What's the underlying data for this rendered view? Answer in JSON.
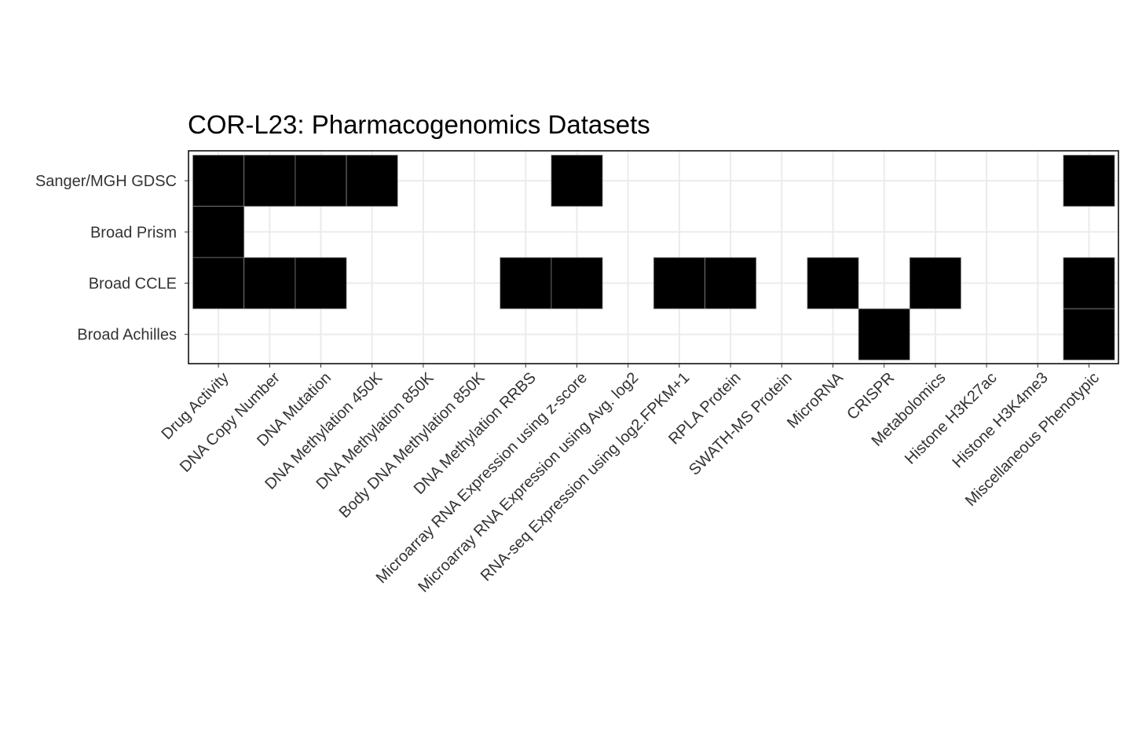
{
  "chart_data": {
    "type": "heatmap",
    "title": "COR-L23: Pharmacogenomics Datasets",
    "xlabel": "",
    "ylabel": "",
    "categories_x": [
      "Drug Activity",
      "DNA Copy Number",
      "DNA Mutation",
      "DNA Methylation 450K",
      "DNA Methylation 850K",
      "Body DNA Methylation 850K",
      "DNA Methylation RRBS",
      "Microarray RNA Expression using z-score",
      "Microarray RNA Expression using Avg. log2",
      "RNA-seq Expression using log2.FPKM+1",
      "RPLA Protein",
      "SWATH-MS Protein",
      "MicroRNA",
      "CRISPR",
      "Metabolomics",
      "Histone H3K27ac",
      "Histone H3K4me3",
      "Miscellaneous Phenotypic"
    ],
    "categories_y": [
      "Sanger/MGH GDSC",
      "Broad Prism",
      "Broad CCLE",
      "Broad Achilles"
    ],
    "values": [
      [
        1,
        1,
        1,
        1,
        0,
        0,
        0,
        1,
        0,
        0,
        0,
        0,
        0,
        0,
        0,
        0,
        0,
        1
      ],
      [
        1,
        0,
        0,
        0,
        0,
        0,
        0,
        0,
        0,
        0,
        0,
        0,
        0,
        0,
        0,
        0,
        0,
        0
      ],
      [
        1,
        1,
        1,
        0,
        0,
        0,
        1,
        1,
        0,
        1,
        1,
        0,
        1,
        0,
        1,
        0,
        0,
        1
      ],
      [
        0,
        0,
        0,
        0,
        0,
        0,
        0,
        0,
        0,
        0,
        0,
        0,
        0,
        1,
        0,
        0,
        0,
        1
      ]
    ],
    "grid": true,
    "legend": "none",
    "colors": {
      "present": "#000000",
      "absent": "#ffffff",
      "grid": "#ebebeb"
    }
  }
}
